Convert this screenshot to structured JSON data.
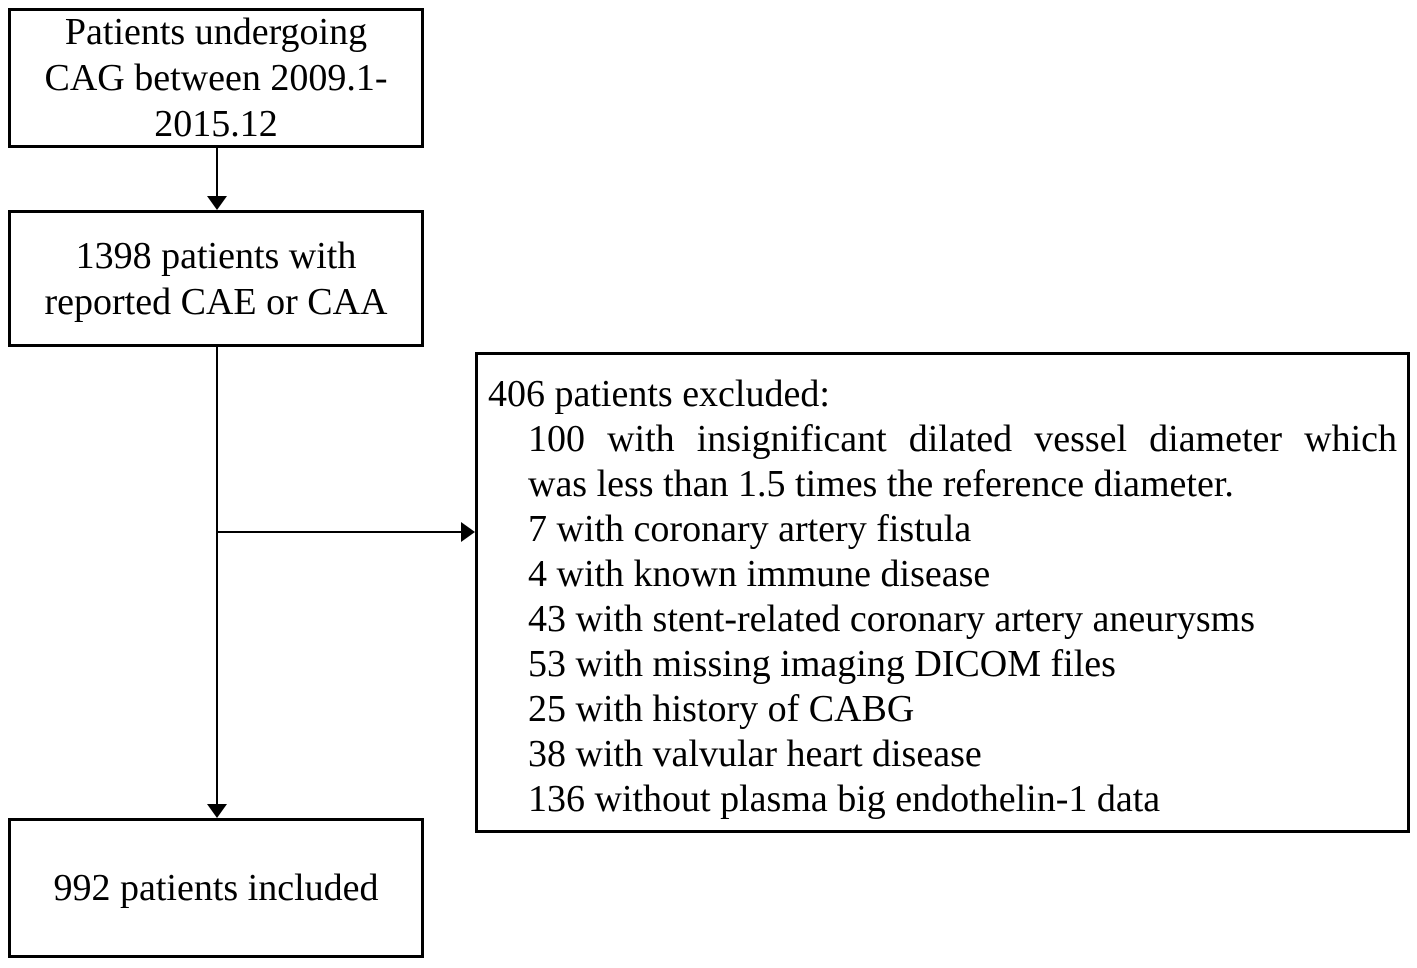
{
  "diagram": {
    "box_top": {
      "lines": [
        "Patients undergoing",
        "CAG between 2009.1-",
        "2015.12"
      ]
    },
    "box_reported": {
      "lines": [
        "1398 patients with",
        "reported CAE or CAA"
      ]
    },
    "box_excluded": {
      "title": "406 patients excluded:",
      "wrapped_item": {
        "line1": "100 with insignificant dilated vessel diameter which",
        "line2": "was less than 1.5 times the reference diameter."
      },
      "items": [
        "7 with coronary artery fistula",
        "4 with known immune disease",
        "43 with stent-related coronary artery aneurysms",
        "53 with missing imaging DICOM files",
        "25 with history of CABG",
        "38 with valvular heart disease",
        "136 without plasma big endothelin-1 data"
      ]
    },
    "box_included": {
      "lines": [
        "992 patients included"
      ]
    },
    "colors": {
      "border": "#000000",
      "text": "#000000",
      "background": "#ffffff"
    }
  }
}
